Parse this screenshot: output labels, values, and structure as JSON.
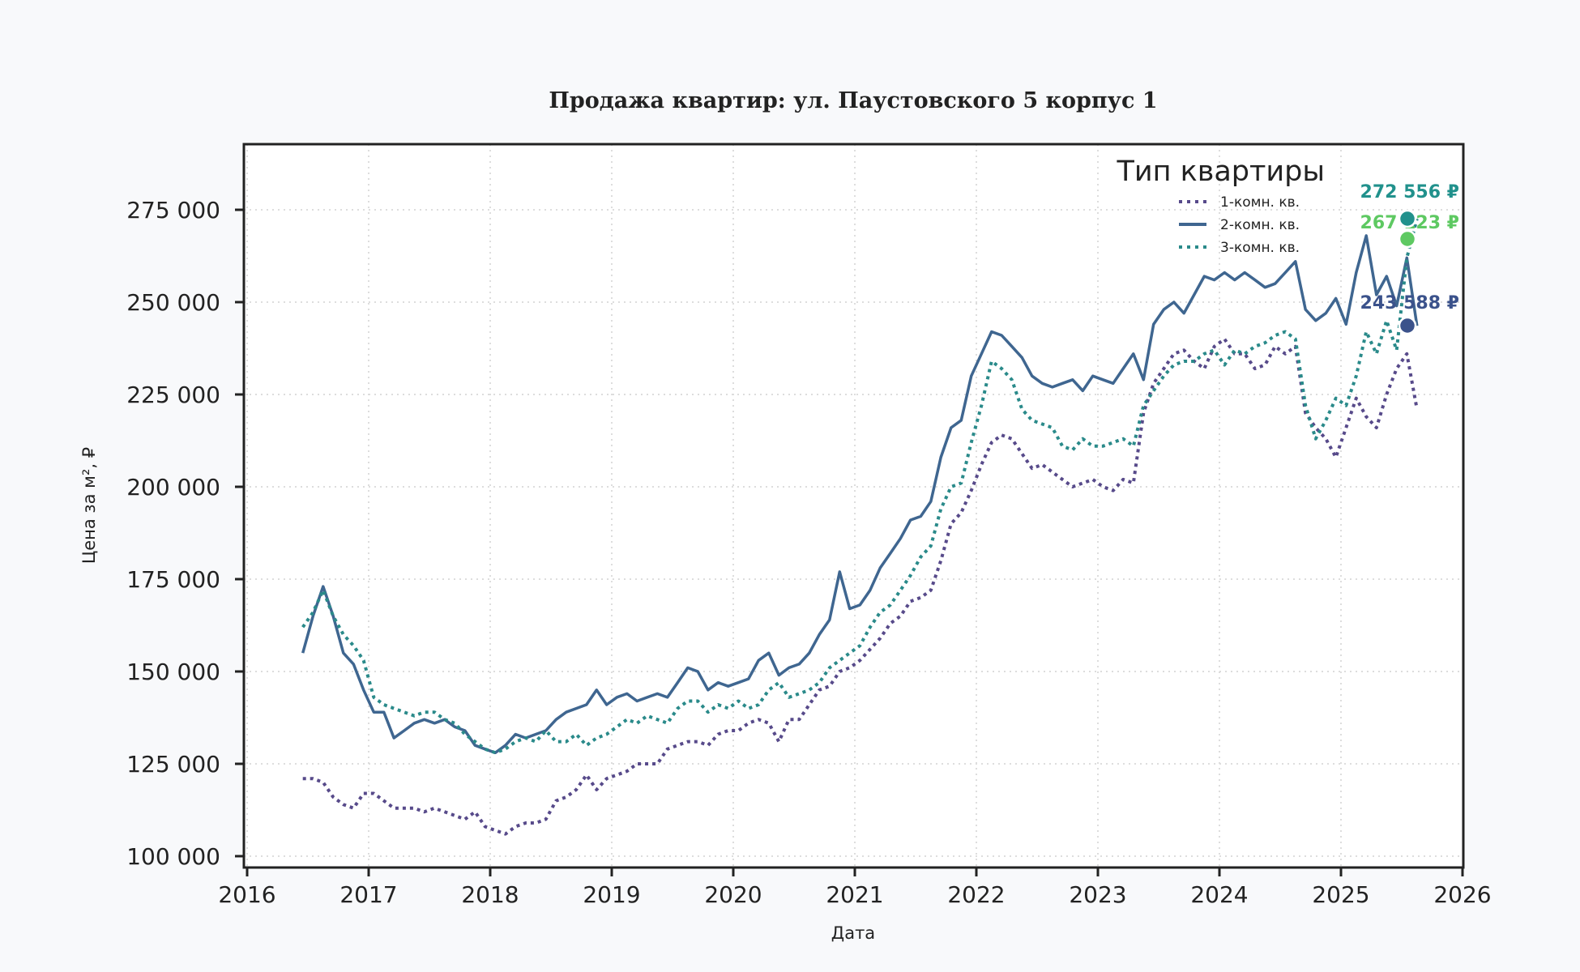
{
  "chart_data": {
    "type": "line",
    "title": "Продажа квартир: ул. Паустовского 5 корпус 1",
    "xlabel": "Дата",
    "ylabel": "Цена за м², ₽",
    "xlim": [
      2016,
      2026
    ],
    "ylim": [
      97000,
      290000
    ],
    "x_ticks": [
      "2016",
      "2017",
      "2018",
      "2019",
      "2020",
      "2021",
      "2022",
      "2023",
      "2024",
      "2025",
      "2026"
    ],
    "y_ticks": [
      100000,
      125000,
      150000,
      175000,
      200000,
      225000,
      250000,
      275000
    ],
    "y_tick_labels": [
      "100 000",
      "125 000",
      "150 000",
      "175 000",
      "200 000",
      "225 000",
      "250 000",
      "275 000"
    ],
    "grid": true,
    "legend": {
      "title": "Тип квартиры",
      "position": "top-right"
    },
    "x": [
      "2016-06",
      "2016-07",
      "2016-08",
      "2016-09",
      "2016-10",
      "2016-11",
      "2016-12",
      "2017-01",
      "2017-02",
      "2017-03",
      "2017-04",
      "2017-05",
      "2017-06",
      "2017-07",
      "2017-08",
      "2017-09",
      "2017-10",
      "2017-11",
      "2017-12",
      "2018-01",
      "2018-02",
      "2018-03",
      "2018-04",
      "2018-05",
      "2018-06",
      "2018-07",
      "2018-08",
      "2018-09",
      "2018-10",
      "2018-11",
      "2018-12",
      "2019-01",
      "2019-02",
      "2019-03",
      "2019-04",
      "2019-05",
      "2019-06",
      "2019-07",
      "2019-08",
      "2019-09",
      "2019-10",
      "2019-11",
      "2019-12",
      "2020-01",
      "2020-02",
      "2020-03",
      "2020-04",
      "2020-05",
      "2020-06",
      "2020-07",
      "2020-08",
      "2020-09",
      "2020-10",
      "2020-11",
      "2020-12",
      "2021-01",
      "2021-02",
      "2021-03",
      "2021-04",
      "2021-05",
      "2021-06",
      "2021-07",
      "2021-08",
      "2021-09",
      "2021-10",
      "2021-11",
      "2021-12",
      "2022-01",
      "2022-02",
      "2022-03",
      "2022-04",
      "2022-05",
      "2022-06",
      "2022-07",
      "2022-08",
      "2022-09",
      "2022-10",
      "2022-11",
      "2022-12",
      "2023-01",
      "2023-02",
      "2023-03",
      "2023-04",
      "2023-05",
      "2023-06",
      "2023-07",
      "2023-08",
      "2023-09",
      "2023-10",
      "2023-11",
      "2023-12",
      "2024-01",
      "2024-02",
      "2024-03",
      "2024-04",
      "2024-05",
      "2024-06",
      "2024-07",
      "2024-08",
      "2024-09",
      "2024-10",
      "2024-11",
      "2024-12",
      "2025-01",
      "2025-02",
      "2025-03",
      "2025-04",
      "2025-05",
      "2025-06",
      "2025-07",
      "2025-08"
    ],
    "series": [
      {
        "name": "1-комн. кв.",
        "color": "#574a8a",
        "style": "dotted",
        "values": [
          121000,
          121000,
          120000,
          116000,
          114000,
          113000,
          117000,
          117000,
          115000,
          113000,
          113000,
          113000,
          112000,
          113000,
          112000,
          111000,
          110000,
          112000,
          108000,
          107000,
          106000,
          108000,
          109000,
          109000,
          110000,
          115000,
          116000,
          118000,
          122000,
          118000,
          121000,
          122000,
          123000,
          125000,
          125000,
          125000,
          129000,
          130000,
          131000,
          131000,
          130000,
          133000,
          134000,
          134000,
          136000,
          137000,
          136000,
          131000,
          137000,
          137000,
          141000,
          145000,
          146000,
          150000,
          151000,
          153000,
          156000,
          159000,
          163000,
          165000,
          169000,
          170000,
          172000,
          180000,
          190000,
          193000,
          199000,
          206000,
          212000,
          214000,
          213000,
          209000,
          205000,
          206000,
          204000,
          202000,
          200000,
          201000,
          202000,
          200000,
          199000,
          202000,
          201000,
          220000,
          228000,
          232000,
          236000,
          237000,
          234000,
          232000,
          238000,
          240000,
          236000,
          236000,
          232000,
          233000,
          238000,
          236000,
          238000,
          220000,
          216000,
          213000,
          208000,
          216000,
          224000,
          219000,
          216000,
          225000,
          232000,
          236000,
          221000
        ]
      },
      {
        "name": "2-комн. кв.",
        "color": "#3f6690",
        "style": "solid",
        "values": [
          155000,
          165000,
          173000,
          165000,
          155000,
          152000,
          145000,
          139000,
          139000,
          132000,
          134000,
          136000,
          137000,
          136000,
          137000,
          135000,
          134000,
          130000,
          129000,
          128000,
          130000,
          133000,
          132000,
          133000,
          134000,
          137000,
          139000,
          140000,
          141000,
          145000,
          141000,
          143000,
          144000,
          142000,
          143000,
          144000,
          143000,
          147000,
          151000,
          150000,
          145000,
          147000,
          146000,
          147000,
          148000,
          153000,
          155000,
          149000,
          151000,
          152000,
          155000,
          160000,
          164000,
          177000,
          167000,
          168000,
          172000,
          178000,
          182000,
          186000,
          191000,
          192000,
          196000,
          208000,
          216000,
          218000,
          230000,
          236000,
          242000,
          241000,
          238000,
          235000,
          230000,
          228000,
          227000,
          228000,
          229000,
          226000,
          230000,
          229000,
          228000,
          232000,
          236000,
          229000,
          244000,
          248000,
          250000,
          247000,
          252000,
          257000,
          256000,
          258000,
          256000,
          258000,
          256000,
          254000,
          255000,
          258000,
          261000,
          248000,
          245000,
          247000,
          251000,
          244000,
          258000,
          268000,
          252000,
          257000,
          249000,
          262000,
          243588
        ]
      },
      {
        "name": "3-комн. кв.",
        "color": "#2a8a8a",
        "style": "dotted",
        "values": [
          162000,
          166000,
          172000,
          165000,
          160000,
          157000,
          153000,
          143000,
          141000,
          140000,
          139000,
          138000,
          139000,
          139000,
          137000,
          136000,
          133000,
          131000,
          129000,
          128000,
          129000,
          131000,
          132000,
          131000,
          134000,
          131000,
          131000,
          133000,
          130000,
          132000,
          133000,
          135000,
          137000,
          136000,
          138000,
          137000,
          136000,
          140000,
          142000,
          142000,
          139000,
          141000,
          140000,
          142000,
          140000,
          141000,
          145000,
          147000,
          143000,
          144000,
          145000,
          147000,
          151000,
          153000,
          155000,
          157000,
          162000,
          166000,
          168000,
          172000,
          176000,
          181000,
          184000,
          194000,
          200000,
          201000,
          212000,
          222000,
          234000,
          232000,
          229000,
          221000,
          218000,
          217000,
          216000,
          211000,
          210000,
          213000,
          211000,
          211000,
          212000,
          213000,
          211000,
          222000,
          226000,
          230000,
          233000,
          234000,
          234000,
          236000,
          237000,
          233000,
          237000,
          236000,
          238000,
          239000,
          241000,
          242000,
          240000,
          222000,
          213000,
          218000,
          224000,
          222000,
          230000,
          242000,
          236000,
          245000,
          237000,
          262000,
          272556
        ]
      }
    ],
    "annotations": [
      {
        "label": "272 556 ₽",
        "x": "2025-08",
        "y": 272556,
        "color": "#21918c"
      },
      {
        "label": "267 123 ₽",
        "x": "2025-08",
        "y": 267123,
        "color": "#5ec962"
      },
      {
        "label": "243 588 ₽",
        "x": "2025-08",
        "y": 243588,
        "color": "#3b528b"
      }
    ]
  }
}
